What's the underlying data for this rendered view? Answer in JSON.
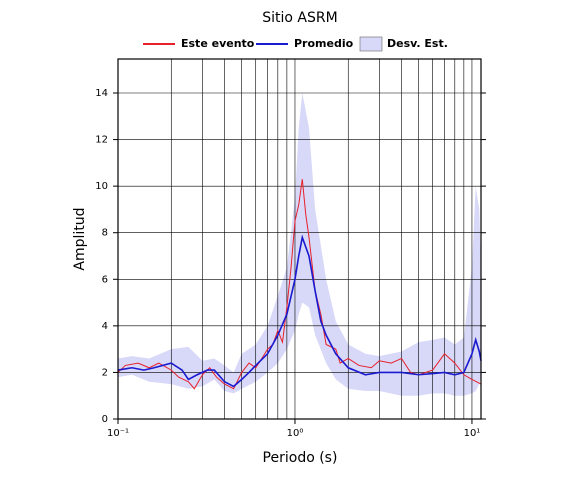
{
  "chart_data": {
    "type": "line",
    "title": "Sitio ASRM",
    "xlabel": "Periodo (s)",
    "ylabel": "Amplitud",
    "xscale": "log",
    "grid": true,
    "legend": "top",
    "xlim": [
      0.1,
      11.25
    ],
    "ylim": [
      0,
      15.46
    ],
    "xticks": [
      {
        "value": 0.1,
        "label": "10⁻¹"
      },
      {
        "value": 1,
        "label": "10⁰"
      },
      {
        "value": 10,
        "label": "10¹"
      }
    ],
    "x_minor_grid": [
      0.2,
      0.3,
      0.4,
      0.5,
      0.6,
      0.7,
      0.8,
      0.9,
      2,
      3,
      4,
      5,
      6,
      7,
      8,
      9
    ],
    "yticks": [
      0,
      2,
      4,
      6,
      8,
      10,
      12,
      14
    ],
    "band": {
      "name": "Desv. Est.",
      "color": "#d8d8f8",
      "x": [
        0.1,
        0.12,
        0.15,
        0.2,
        0.25,
        0.3,
        0.35,
        0.4,
        0.45,
        0.5,
        0.6,
        0.7,
        0.8,
        0.9,
        1.0,
        1.05,
        1.1,
        1.2,
        1.3,
        1.5,
        1.7,
        2.0,
        2.5,
        3,
        4,
        5,
        6,
        7,
        8,
        9,
        10,
        10.5,
        11,
        11.25
      ],
      "lower": [
        1.8,
        1.9,
        1.6,
        1.5,
        1.3,
        1.4,
        1.7,
        1.2,
        1.1,
        1.3,
        1.6,
        2.0,
        2.4,
        3.0,
        3.8,
        4.5,
        5.0,
        4.8,
        3.6,
        2.4,
        1.7,
        1.3,
        1.2,
        1.2,
        1.0,
        1.0,
        1.1,
        1.1,
        1.0,
        1.0,
        1.1,
        1.2,
        1.5,
        1.8
      ],
      "upper": [
        2.6,
        2.7,
        2.6,
        3.0,
        3.1,
        2.5,
        2.6,
        2.3,
        2.0,
        2.8,
        3.2,
        4.0,
        5.3,
        6.5,
        9.5,
        12.5,
        14.0,
        12.5,
        9.0,
        6.0,
        4.2,
        3.2,
        2.8,
        2.7,
        2.9,
        3.3,
        3.4,
        3.5,
        3.2,
        3.5,
        6.5,
        10.0,
        9.0,
        6.5
      ]
    },
    "series": [
      {
        "name": "Este evento",
        "color": "#e8202a",
        "x": [
          0.1,
          0.11,
          0.13,
          0.15,
          0.17,
          0.2,
          0.22,
          0.25,
          0.27,
          0.3,
          0.33,
          0.36,
          0.4,
          0.45,
          0.5,
          0.55,
          0.6,
          0.65,
          0.7,
          0.75,
          0.8,
          0.85,
          0.9,
          0.95,
          1.0,
          1.05,
          1.1,
          1.15,
          1.2,
          1.3,
          1.4,
          1.5,
          1.7,
          1.8,
          2.0,
          2.3,
          2.7,
          3.0,
          3.5,
          4,
          4.5,
          5,
          6,
          7,
          8,
          9,
          10,
          11.25
        ],
        "values": [
          2.0,
          2.3,
          2.4,
          2.2,
          2.4,
          2.1,
          1.8,
          1.6,
          1.3,
          1.9,
          2.2,
          1.8,
          1.5,
          1.3,
          2.0,
          2.4,
          2.2,
          2.6,
          3.0,
          3.2,
          3.8,
          3.3,
          4.8,
          6.5,
          8.5,
          9.2,
          10.3,
          8.8,
          7.8,
          5.5,
          4.5,
          3.2,
          3.0,
          2.4,
          2.6,
          2.3,
          2.2,
          2.5,
          2.4,
          2.6,
          2.0,
          1.9,
          2.1,
          2.8,
          2.4,
          1.9,
          1.7,
          1.5
        ]
      },
      {
        "name": "Promedio",
        "color": "#1a1ad0",
        "x": [
          0.1,
          0.12,
          0.14,
          0.16,
          0.2,
          0.23,
          0.25,
          0.28,
          0.32,
          0.35,
          0.4,
          0.45,
          0.5,
          0.55,
          0.6,
          0.7,
          0.8,
          0.9,
          1.0,
          1.05,
          1.1,
          1.2,
          1.3,
          1.4,
          1.5,
          1.7,
          2.0,
          2.5,
          3,
          4,
          5,
          6,
          7,
          8,
          9,
          10,
          10.5,
          11,
          11.25
        ],
        "values": [
          2.1,
          2.2,
          2.1,
          2.2,
          2.4,
          2.1,
          1.7,
          1.9,
          2.1,
          2.1,
          1.6,
          1.4,
          1.7,
          2.0,
          2.3,
          2.8,
          3.6,
          4.5,
          6.0,
          7.0,
          7.8,
          7.0,
          5.5,
          4.2,
          3.6,
          2.8,
          2.2,
          1.9,
          2.0,
          2.0,
          1.9,
          1.95,
          2.0,
          1.9,
          2.0,
          2.8,
          3.4,
          2.9,
          2.5
        ]
      }
    ]
  }
}
